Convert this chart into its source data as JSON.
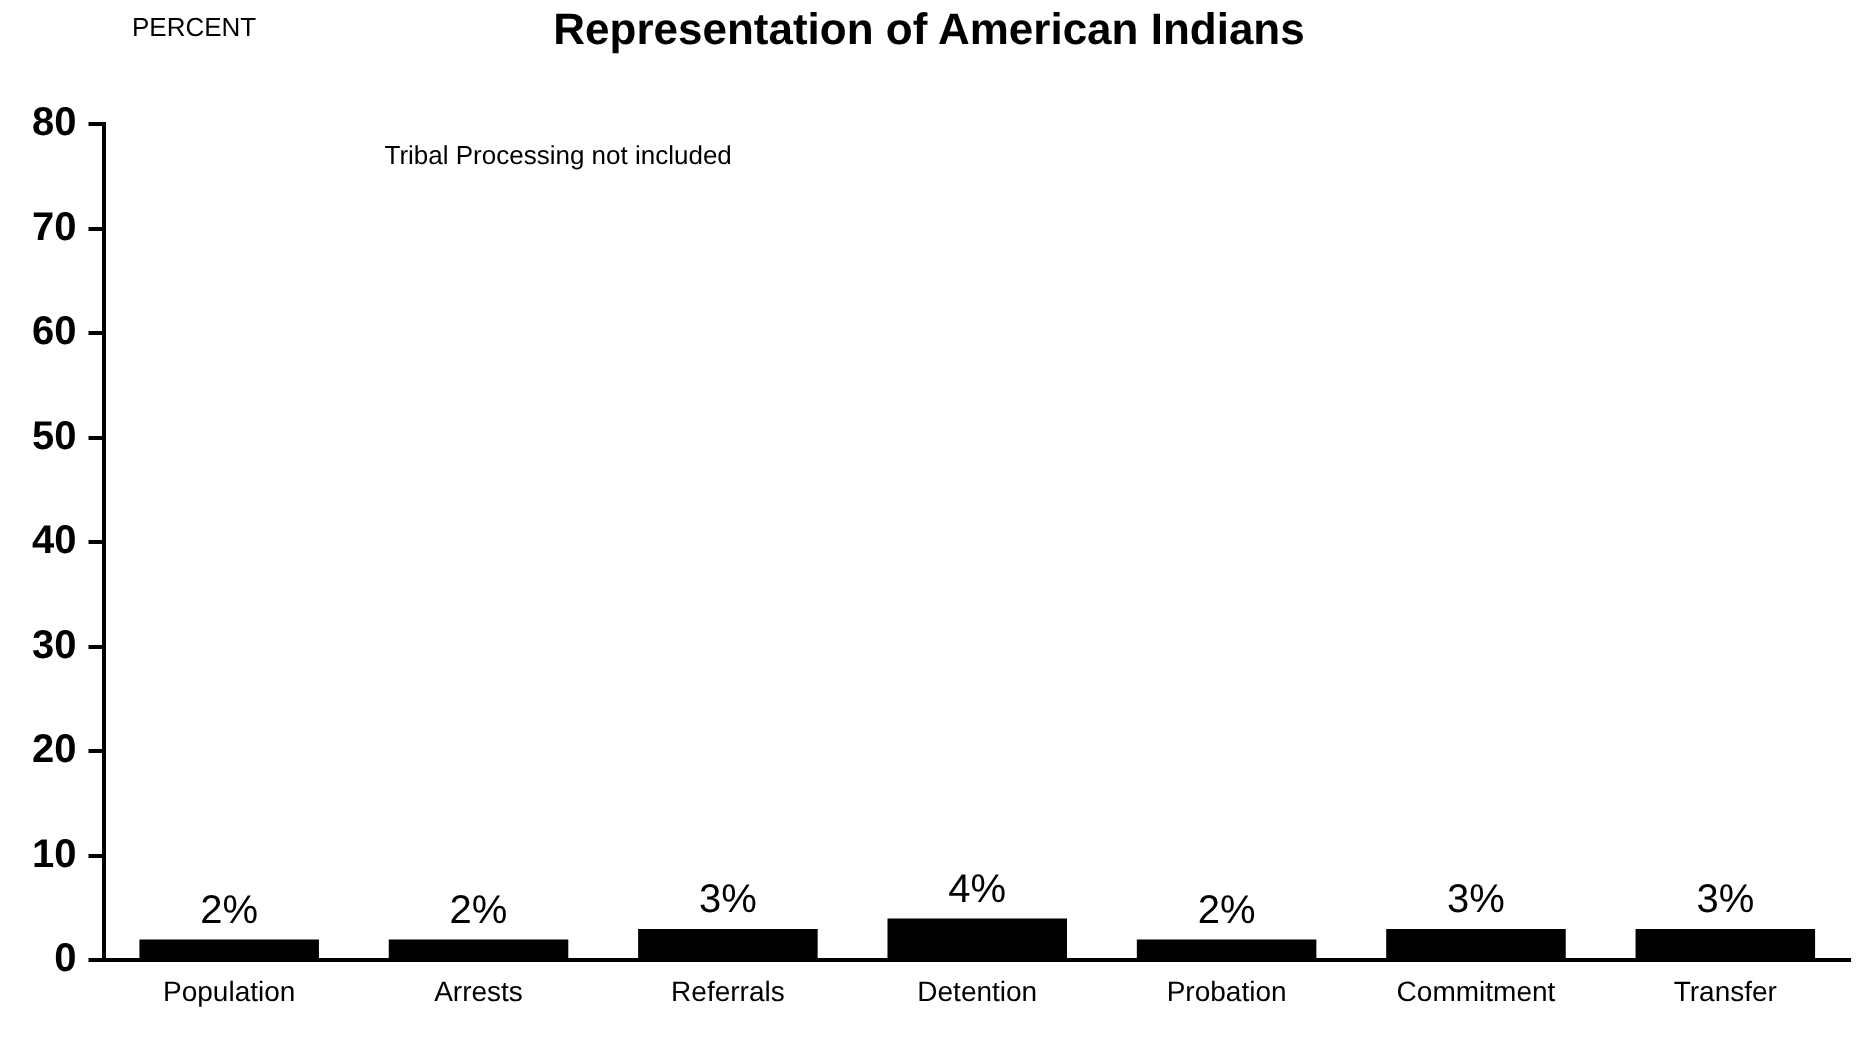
{
  "chart_data": {
    "type": "bar",
    "title": "Representation of American Indians",
    "ylabel": "PERCENT",
    "categories": [
      "Population",
      "Arrests",
      "Referrals",
      "Detention",
      "Probation",
      "Commitment",
      "Transfer"
    ],
    "values": [
      2,
      2,
      3,
      4,
      2,
      3,
      3
    ],
    "color": "#000000",
    "value_labels": [
      "2%",
      "2%",
      "3%",
      "4%",
      "2%",
      "3%",
      "3%"
    ],
    "ylim": [
      0,
      80
    ],
    "yticks": [
      0,
      10,
      20,
      30,
      40,
      50,
      60,
      70,
      80
    ],
    "grid": false,
    "legend": false,
    "annotations": [
      "Tribal Processing not included"
    ]
  }
}
